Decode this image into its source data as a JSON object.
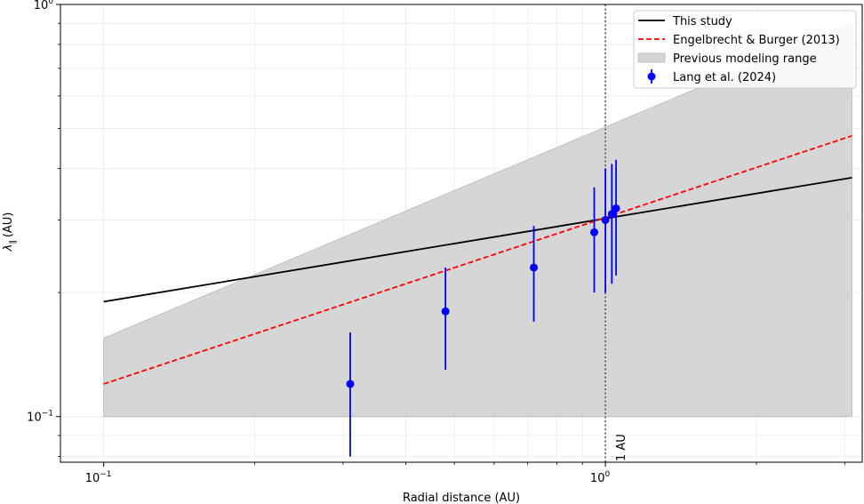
{
  "chart_data": {
    "type": "line",
    "xlabel": "Radial distance (AU)",
    "ylabel_symbol": "λ",
    "ylabel_subscript": "∥",
    "ylabel_unit": "(AU)",
    "x_scale": "log",
    "y_scale": "log",
    "xlim": [
      0.082,
      3.25
    ],
    "ylim": [
      0.0775,
      1.0
    ],
    "grid": true,
    "legend_position": "top-right",
    "x_tick_labels": [
      {
        "value": 0.1,
        "base": "10",
        "exp": "−1"
      },
      {
        "value": 1.0,
        "base": "10",
        "exp": "0"
      }
    ],
    "y_tick_labels": [
      {
        "value": 0.1,
        "base": "10",
        "exp": "−1"
      },
      {
        "value": 1.0,
        "base": "10",
        "exp": "0"
      }
    ],
    "series": [
      {
        "name": "This study",
        "kind": "line",
        "color": "#000000",
        "dash": "solid",
        "x": [
          0.1,
          3.1
        ],
        "y": [
          0.19,
          0.38
        ]
      },
      {
        "name": "Engelbrecht & Burger (2013)",
        "kind": "line",
        "color": "#ff0000",
        "dash": "dashed",
        "x": [
          0.1,
          3.1
        ],
        "y": [
          0.12,
          0.48
        ]
      },
      {
        "name": "Previous modeling range",
        "kind": "band",
        "color": "#c8c8c8",
        "x": [
          0.1,
          3.1
        ],
        "lower": [
          0.1,
          0.1
        ],
        "upper": [
          0.155,
          0.9
        ]
      },
      {
        "name": "Lang et al. (2024)",
        "kind": "errorbar",
        "color": "#0000ff",
        "points": [
          {
            "x": 0.31,
            "y": 0.12,
            "lo": 0.08,
            "hi": 0.16
          },
          {
            "x": 0.48,
            "y": 0.18,
            "lo": 0.13,
            "hi": 0.23
          },
          {
            "x": 0.72,
            "y": 0.23,
            "lo": 0.17,
            "hi": 0.29
          },
          {
            "x": 0.95,
            "y": 0.28,
            "lo": 0.2,
            "hi": 0.36
          },
          {
            "x": 1.0,
            "y": 0.3,
            "lo": 0.2,
            "hi": 0.4
          },
          {
            "x": 1.03,
            "y": 0.31,
            "lo": 0.21,
            "hi": 0.41
          },
          {
            "x": 1.05,
            "y": 0.32,
            "lo": 0.22,
            "hi": 0.42
          }
        ]
      }
    ],
    "vline": {
      "x": 1.0,
      "color": "#555555",
      "style": "dotted",
      "label": "1 AU"
    }
  }
}
